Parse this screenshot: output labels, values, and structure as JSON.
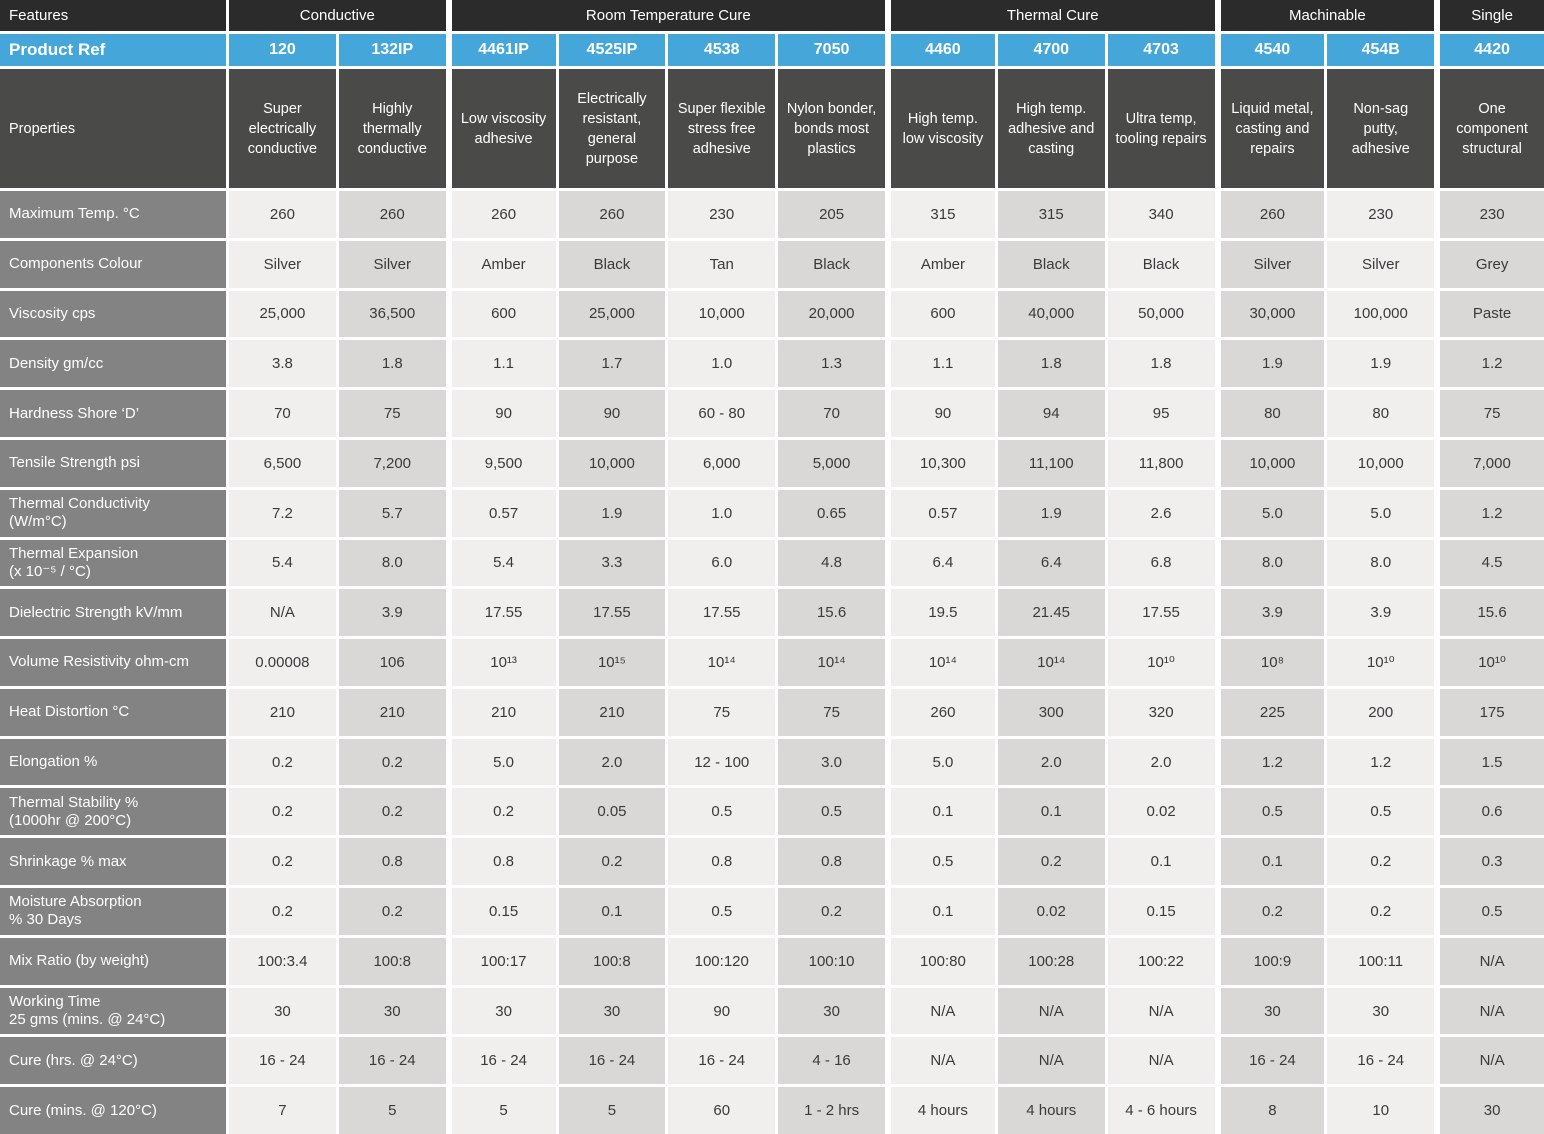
{
  "table": {
    "feature_header": "Features",
    "product_ref_header": "Product Ref",
    "properties_header": "Properties",
    "groups": [
      {
        "label": "Conductive",
        "span": 2
      },
      {
        "label": "Room Temperature Cure",
        "span": 4
      },
      {
        "label": "Thermal Cure",
        "span": 3
      },
      {
        "label": "Machinable",
        "span": 2
      },
      {
        "label": "Single",
        "span": 1
      }
    ],
    "products": [
      "120",
      "132IP",
      "4461IP",
      "4525IP",
      "4538",
      "7050",
      "4460",
      "4700",
      "4703",
      "4540",
      "454B",
      "4420"
    ],
    "descriptions": [
      "Super electrically conductive",
      "Highly thermally conductive",
      "Low viscosity adhesive",
      "Electrically resistant, general purpose",
      "Super flexible stress free adhesive",
      "Nylon bonder, bonds most plastics",
      "High temp. low viscosity",
      "High temp. adhesive and casting",
      "Ultra temp, tooling repairs",
      "Liquid metal, casting and repairs",
      "Non-sag putty, adhesive",
      "One component structural"
    ],
    "rows": [
      {
        "label": "Maximum Temp. °C",
        "values": [
          "260",
          "260",
          "260",
          "260",
          "230",
          "205",
          "315",
          "315",
          "340",
          "260",
          "230",
          "230"
        ]
      },
      {
        "label": "Components Colour",
        "values": [
          "Silver",
          "Silver",
          "Amber",
          "Black",
          "Tan",
          "Black",
          "Amber",
          "Black",
          "Black",
          "Silver",
          "Silver",
          "Grey"
        ]
      },
      {
        "label": "Viscosity cps",
        "values": [
          "25,000",
          "36,500",
          "600",
          "25,000",
          "10,000",
          "20,000",
          "600",
          "40,000",
          "50,000",
          "30,000",
          "100,000",
          "Paste"
        ]
      },
      {
        "label": "Density gm/cc",
        "values": [
          "3.8",
          "1.8",
          "1.1",
          "1.7",
          "1.0",
          "1.3",
          "1.1",
          "1.8",
          "1.8",
          "1.9",
          "1.9",
          "1.2"
        ]
      },
      {
        "label": "Hardness Shore ‘D’",
        "values": [
          "70",
          "75",
          "90",
          "90",
          "60 - 80",
          "70",
          "90",
          "94",
          "95",
          "80",
          "80",
          "75"
        ]
      },
      {
        "label": "Tensile Strength psi",
        "values": [
          "6,500",
          "7,200",
          "9,500",
          "10,000",
          "6,000",
          "5,000",
          "10,300",
          "11,100",
          "11,800",
          "10,000",
          "10,000",
          "7,000"
        ]
      },
      {
        "label": "Thermal Conductivity\n(W/m°C)",
        "values": [
          "7.2",
          "5.7",
          "0.57",
          "1.9",
          "1.0",
          "0.65",
          "0.57",
          "1.9",
          "2.6",
          "5.0",
          "5.0",
          "1.2"
        ]
      },
      {
        "label": "Thermal Expansion\n(x 10⁻⁵ / °C)",
        "values": [
          "5.4",
          "8.0",
          "5.4",
          "3.3",
          "6.0",
          "4.8",
          "6.4",
          "6.4",
          "6.8",
          "8.0",
          "8.0",
          "4.5"
        ]
      },
      {
        "label": "Dielectric Strength kV/mm",
        "values": [
          "N/A",
          "3.9",
          "17.55",
          "17.55",
          "17.55",
          "15.6",
          "19.5",
          "21.45",
          "17.55",
          "3.9",
          "3.9",
          "15.6"
        ]
      },
      {
        "label": "Volume Resistivity ohm-cm",
        "values": [
          "0.00008",
          "106",
          "10¹³",
          "10¹⁵",
          "10¹⁴",
          "10¹⁴",
          "10¹⁴",
          "10¹⁴",
          "10¹⁰",
          "10⁸",
          "10¹⁰",
          "10¹⁰"
        ]
      },
      {
        "label": "Heat Distortion °C",
        "values": [
          "210",
          "210",
          "210",
          "210",
          "75",
          "75",
          "260",
          "300",
          "320",
          "225",
          "200",
          "175"
        ]
      },
      {
        "label": "Elongation %",
        "values": [
          "0.2",
          "0.2",
          "5.0",
          "2.0",
          "12 - 100",
          "3.0",
          "5.0",
          "2.0",
          "2.0",
          "1.2",
          "1.2",
          "1.5"
        ]
      },
      {
        "label": "Thermal Stability %\n(1000hr @ 200°C)",
        "values": [
          "0.2",
          "0.2",
          "0.2",
          "0.05",
          "0.5",
          "0.5",
          "0.1",
          "0.1",
          "0.02",
          "0.5",
          "0.5",
          "0.6"
        ]
      },
      {
        "label": "Shrinkage % max",
        "values": [
          "0.2",
          "0.8",
          "0.8",
          "0.2",
          "0.8",
          "0.8",
          "0.5",
          "0.2",
          "0.1",
          "0.1",
          "0.2",
          "0.3"
        ]
      },
      {
        "label": "Moisture Absorption\n% 30 Days",
        "values": [
          "0.2",
          "0.2",
          "0.15",
          "0.1",
          "0.5",
          "0.2",
          "0.1",
          "0.02",
          "0.15",
          "0.2",
          "0.2",
          "0.5"
        ]
      },
      {
        "label": "Mix Ratio (by weight)",
        "values": [
          "100:3.4",
          "100:8",
          "100:17",
          "100:8",
          "100:120",
          "100:10",
          "100:80",
          "100:28",
          "100:22",
          "100:9",
          "100:11",
          "N/A"
        ]
      },
      {
        "label": "Working Time\n25 gms (mins. @ 24°C)",
        "values": [
          "30",
          "30",
          "30",
          "30",
          "90",
          "30",
          "N/A",
          "N/A",
          "N/A",
          "30",
          "30",
          "N/A"
        ]
      },
      {
        "label": "Cure (hrs. @ 24°C)",
        "values": [
          "16 - 24",
          "16 - 24",
          "16 - 24",
          "16 - 24",
          "16 - 24",
          "4 - 16",
          "N/A",
          "N/A",
          "N/A",
          "16 - 24",
          "16 - 24",
          "N/A"
        ]
      },
      {
        "label": "Cure (mins. @ 120°C)",
        "values": [
          "7",
          "5",
          "5",
          "5",
          "60",
          "1 - 2 hrs",
          "4 hours",
          "4 hours",
          "4 - 6 hours",
          "8",
          "10",
          "30"
        ]
      }
    ],
    "colors": {
      "header_dark": "#2b2b2b",
      "accent_blue": "#45a6da",
      "properties_charcoal": "#4a4a48",
      "row_label_gray": "#838383",
      "cell_light": "#f0efee",
      "cell_dark": "#d9d8d6",
      "cell_text": "#3a3a3a",
      "grid_gap_white": "#ffffff"
    }
  }
}
